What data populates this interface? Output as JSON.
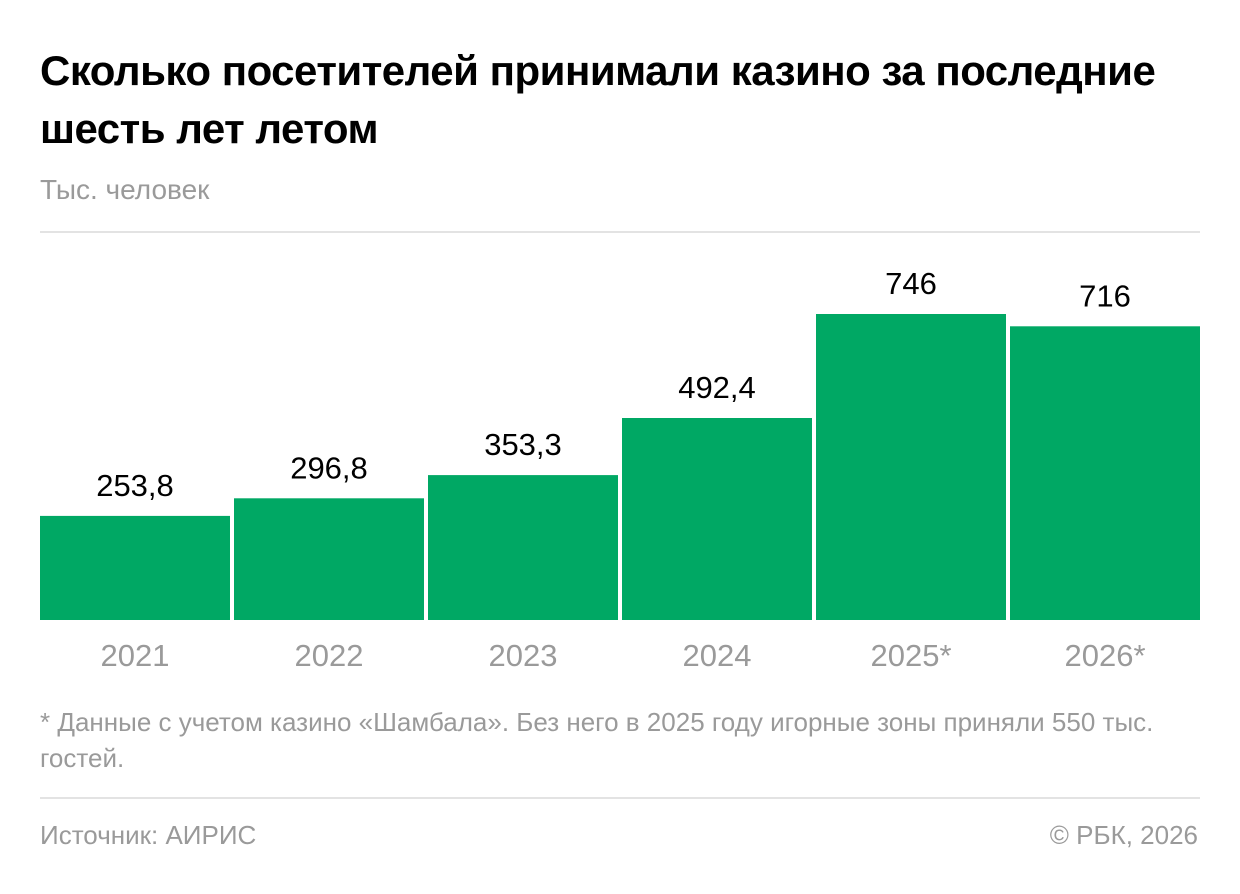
{
  "chart_data": {
    "type": "bar",
    "title": "Сколько посетителей принимали казино за последние шесть лет летом",
    "subtitle": "Тыс. человек",
    "categories": [
      "2021",
      "2022",
      "2023",
      "2024",
      "2025*",
      "2026*"
    ],
    "values": [
      253.8,
      296.8,
      353.3,
      492.4,
      746,
      716
    ],
    "value_labels": [
      "253,8",
      "296,8",
      "353,3",
      "492,4",
      "746",
      "716"
    ],
    "xlabel": "",
    "ylabel": "",
    "ylim": [
      0,
      746
    ],
    "grid": false,
    "legend": "none",
    "bar_color": "#00a864"
  },
  "footnote": "* Данные с учетом казино «Шамбала». Без него в 2025 году игорные зоны приняли 550 тыс. гостей.",
  "source": "Источник: АИРИС",
  "copyright": "© РБК, 2026",
  "colors": {
    "muted_text": "#9a9a9a",
    "divider": "#e3e3e3"
  }
}
